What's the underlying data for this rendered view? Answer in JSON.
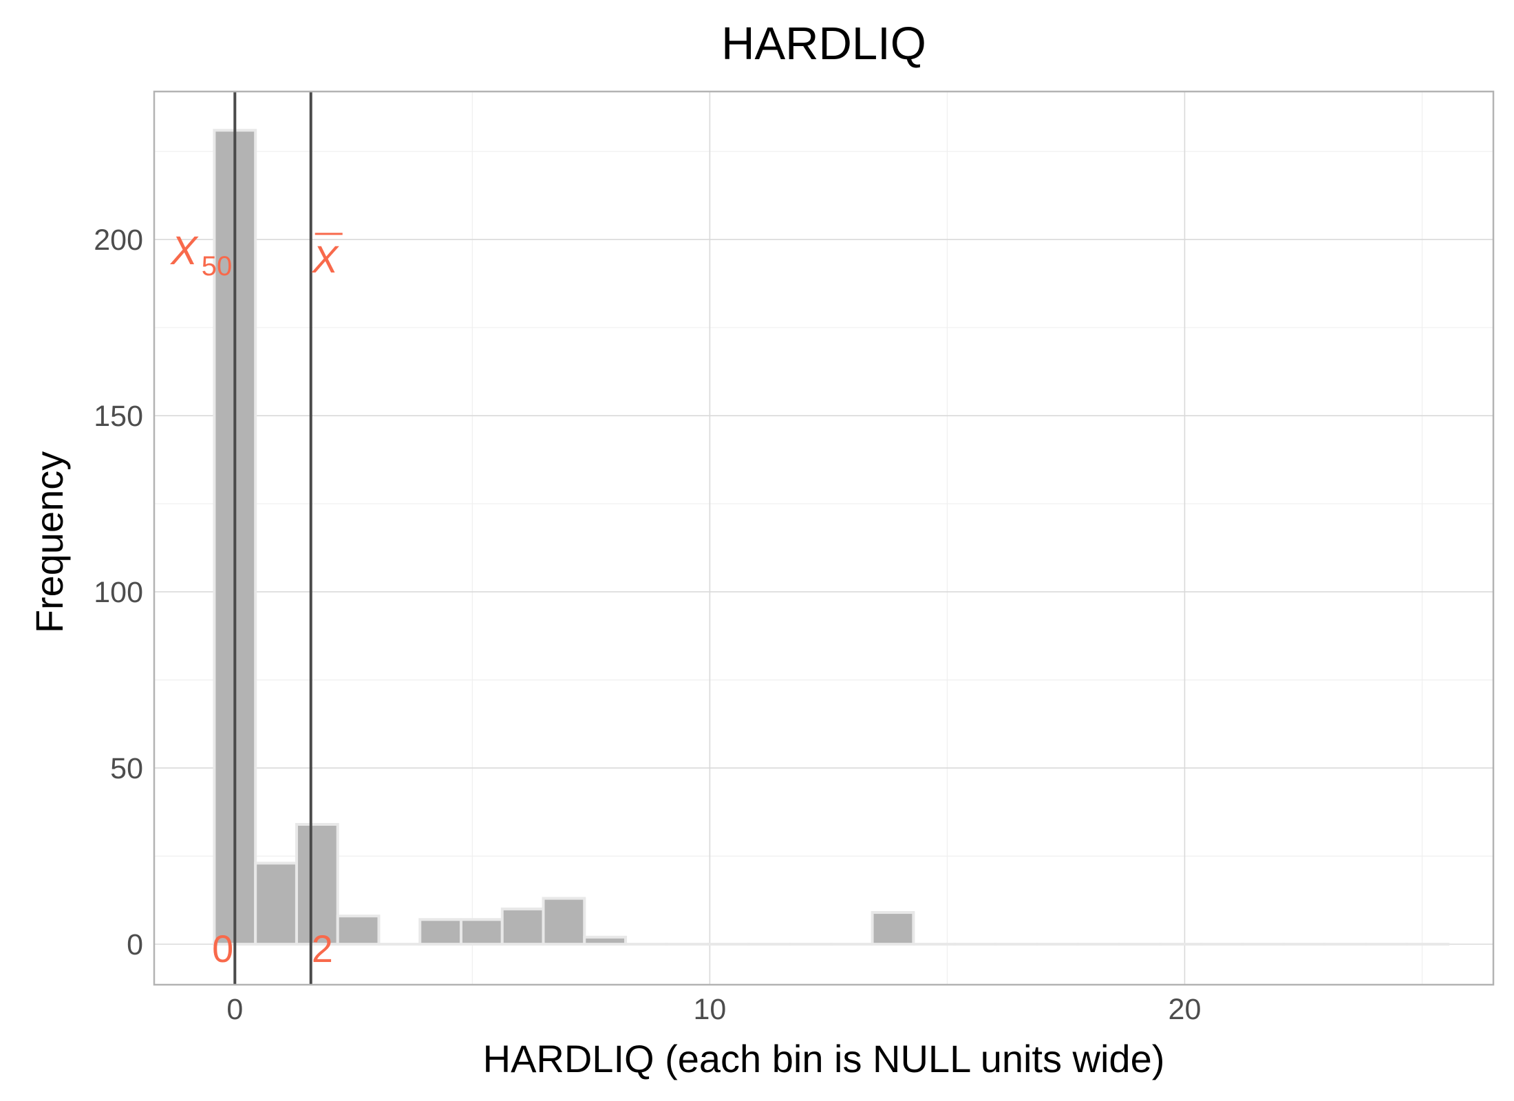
{
  "chart_data": {
    "type": "bar",
    "title": "HARDLIQ",
    "xlabel": "HARDLIQ (each bin is NULL units wide)",
    "ylabel": "Frequency",
    "xlim": [
      -1.7,
      26.5
    ],
    "ylim": [
      -11.5,
      242
    ],
    "x_ticks": [
      0,
      10,
      20
    ],
    "y_ticks": [
      0,
      50,
      100,
      150,
      200
    ],
    "bin_width": 0.866,
    "bins": [
      {
        "x0": -0.433,
        "x1": 0.433,
        "count": 231
      },
      {
        "x0": 0.433,
        "x1": 1.299,
        "count": 23
      },
      {
        "x0": 1.299,
        "x1": 2.165,
        "count": 34
      },
      {
        "x0": 2.165,
        "x1": 3.031,
        "count": 8
      },
      {
        "x0": 3.031,
        "x1": 3.897,
        "count": 0
      },
      {
        "x0": 3.897,
        "x1": 4.763,
        "count": 7
      },
      {
        "x0": 4.763,
        "x1": 5.629,
        "count": 7
      },
      {
        "x0": 5.629,
        "x1": 6.495,
        "count": 10
      },
      {
        "x0": 6.495,
        "x1": 7.361,
        "count": 13
      },
      {
        "x0": 7.361,
        "x1": 8.227,
        "count": 2
      },
      {
        "x0": 8.227,
        "x1": 9.093,
        "count": 0
      },
      {
        "x0": 9.093,
        "x1": 9.959,
        "count": 0
      },
      {
        "x0": 9.959,
        "x1": 10.825,
        "count": 0
      },
      {
        "x0": 10.825,
        "x1": 11.691,
        "count": 0
      },
      {
        "x0": 11.691,
        "x1": 12.557,
        "count": 0
      },
      {
        "x0": 12.557,
        "x1": 13.423,
        "count": 0
      },
      {
        "x0": 13.423,
        "x1": 14.289,
        "count": 9
      },
      {
        "x0": 14.289,
        "x1": 15.155,
        "count": 0
      },
      {
        "x0": 15.155,
        "x1": 16.021,
        "count": 0
      },
      {
        "x0": 16.021,
        "x1": 16.887,
        "count": 0
      },
      {
        "x0": 16.887,
        "x1": 17.753,
        "count": 0
      },
      {
        "x0": 17.753,
        "x1": 18.619,
        "count": 0
      },
      {
        "x0": 18.619,
        "x1": 19.485,
        "count": 0
      },
      {
        "x0": 19.485,
        "x1": 20.351,
        "count": 0
      },
      {
        "x0": 20.351,
        "x1": 21.217,
        "count": 0
      },
      {
        "x0": 21.217,
        "x1": 22.083,
        "count": 0
      },
      {
        "x0": 22.083,
        "x1": 22.949,
        "count": 0
      },
      {
        "x0": 22.949,
        "x1": 23.815,
        "count": 0
      },
      {
        "x0": 23.815,
        "x1": 24.681,
        "count": 0
      },
      {
        "x0": 24.681,
        "x1": 25.547,
        "count": 0
      }
    ],
    "reference_lines": [
      {
        "label": "median",
        "x": 0,
        "value_text": "0"
      },
      {
        "label": "mean",
        "x": 1.6,
        "value_text": "2"
      }
    ],
    "median_label": {
      "main": "X",
      "sub": "50"
    },
    "mean_label": "X",
    "grid": true,
    "legend": "none",
    "bar_fill": "#b3b3b3",
    "bar_outline": "#e8e8e8",
    "annotation_color": "#f8694b",
    "vline_color": "#4a4a4a"
  }
}
